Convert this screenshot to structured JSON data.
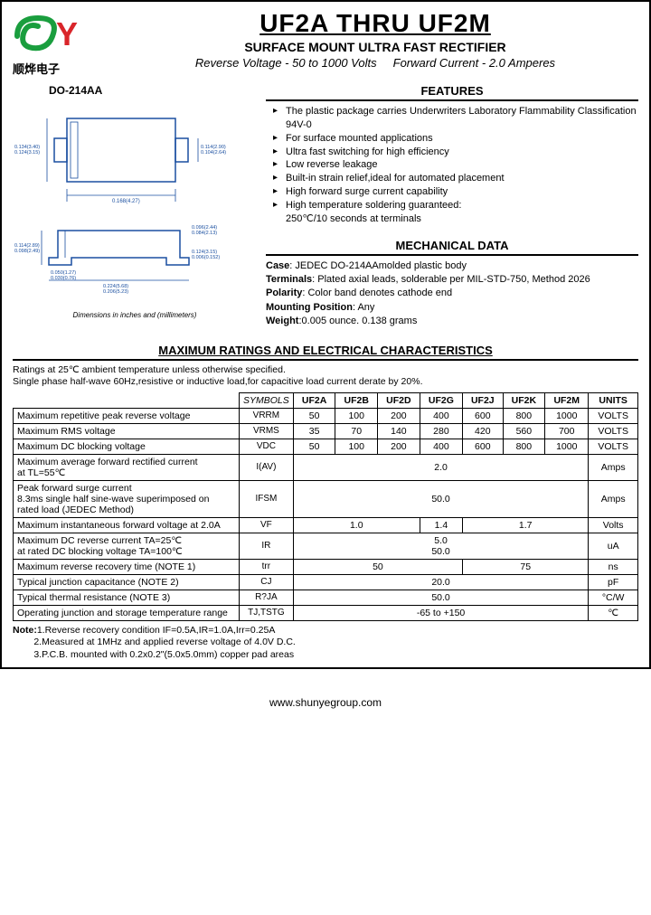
{
  "logo": {
    "company_cn": "顺烨电子",
    "color_s": "#1a9e3e",
    "color_y": "#d9252a"
  },
  "title": {
    "main": "UF2A THRU UF2M",
    "sub": "SURFACE MOUNT ULTRA FAST RECTIFIER",
    "spec_left": "Reverse Voltage - 50 to 1000 Volts",
    "spec_right": "Forward Current - 2.0 Amperes"
  },
  "package": {
    "label": "DO-214AA",
    "dim_note": "Dimensions in inches and (millimeters)",
    "top": {
      "h_label": "0.134(3.40)\n0.124(3.15)",
      "w_label": "0.168(4.27)",
      "r_label": "0.114(2.90)\n0.104(2.64)"
    },
    "side": {
      "gap": "0.096(2.44)\n0.084(2.13)",
      "h": "0.114(2.89)\n0.098(2.49)",
      "lead": "0.050(1.27)\n0.030(0.76)",
      "band": "0.224(5.68)\n0.206(5.23)",
      "total": "0.124(3.15)\n0.006(0.152)"
    }
  },
  "features": {
    "title": "FEATURES",
    "items": [
      "The plastic package carries Underwriters Laboratory Flammability Classification 94V-0",
      "For surface mounted applications",
      "Ultra fast switching for high efficiency",
      "Low reverse leakage",
      "Built-in strain relief,ideal for automated placement",
      "High forward surge current capability",
      "High temperature soldering guaranteed:\n        250℃/10 seconds at terminals"
    ]
  },
  "mech": {
    "title": "MECHANICAL DATA",
    "case": "JEDEC DO-214AAmolded plastic body",
    "terminals": "Plated axial leads, solderable per MIL-STD-750, Method 2026",
    "polarity": "Color band denotes cathode end",
    "mounting": "Any",
    "weight": "0.005 ounce. 0.138 grams"
  },
  "ratings": {
    "title": "MAXIMUM RATINGS AND ELECTRICAL CHARACTERISTICS",
    "note": "Ratings at 25℃ ambient temperature unless otherwise specified.\nSingle phase half-wave 60Hz,resistive or inductive load,for capacitive load current derate by 20%.",
    "headers": {
      "sym": "SYMBOLS",
      "parts": [
        "UF2A",
        "UF2B",
        "UF2D",
        "UF2G",
        "UF2J",
        "UF2K",
        "UF2M"
      ],
      "units": "UNITS"
    },
    "rows": [
      {
        "param": "Maximum repetitive peak reverse voltage",
        "sym": "VRRM",
        "vals": [
          "50",
          "100",
          "200",
          "400",
          "600",
          "800",
          "1000"
        ],
        "unit": "VOLTS"
      },
      {
        "param": "Maximum RMS voltage",
        "sym": "VRMS",
        "vals": [
          "35",
          "70",
          "140",
          "280",
          "420",
          "560",
          "700"
        ],
        "unit": "VOLTS"
      },
      {
        "param": "Maximum DC blocking voltage",
        "sym": "VDC",
        "vals": [
          "50",
          "100",
          "200",
          "400",
          "600",
          "800",
          "1000"
        ],
        "unit": "VOLTS"
      },
      {
        "param": "Maximum average forward rectified current\nat TL=55℃",
        "sym": "I(AV)",
        "span": "2.0",
        "unit": "Amps"
      },
      {
        "param": "Peak forward surge current\n8.3ms single half sine-wave superimposed on\nrated load (JEDEC Method)",
        "sym": "IFSM",
        "span": "50.0",
        "unit": "Amps"
      },
      {
        "param": "Maximum instantaneous forward voltage at 2.0A",
        "sym": "VF",
        "groups": [
          {
            "span": 3,
            "v": "1.0"
          },
          {
            "span": 1,
            "v": "1.4"
          },
          {
            "span": 3,
            "v": "1.7"
          }
        ],
        "unit": "Volts"
      },
      {
        "param": "Maximum DC reverse current     TA=25℃\nat rated DC blocking voltage     TA=100℃",
        "sym": "IR",
        "stack": [
          "5.0",
          "50.0"
        ],
        "unit": "uA"
      },
      {
        "param": "Maximum reverse recovery time      (NOTE 1)",
        "sym": "trr",
        "groups": [
          {
            "span": 4,
            "v": "50"
          },
          {
            "span": 3,
            "v": "75"
          }
        ],
        "unit": "ns"
      },
      {
        "param": "Typical junction capacitance (NOTE 2)",
        "sym": "CJ",
        "span": "20.0",
        "unit": "pF"
      },
      {
        "param": "Typical thermal resistance (NOTE 3)",
        "sym": "R?JA",
        "span": "50.0",
        "unit": "°C/W"
      },
      {
        "param": "Operating junction and storage temperature range",
        "sym": "TJ,TSTG",
        "span": "-65 to +150",
        "unit": "℃"
      }
    ],
    "footnotes": [
      "1.Reverse recovery condition IF=0.5A,IR=1.0A,Irr=0.25A",
      "2.Measured at 1MHz and applied reverse voltage of 4.0V D.C.",
      "3.P.C.B. mounted with 0.2x0.2\"(5.0x5.0mm) copper pad areas"
    ]
  },
  "footer": "www.shunyegroup.com"
}
